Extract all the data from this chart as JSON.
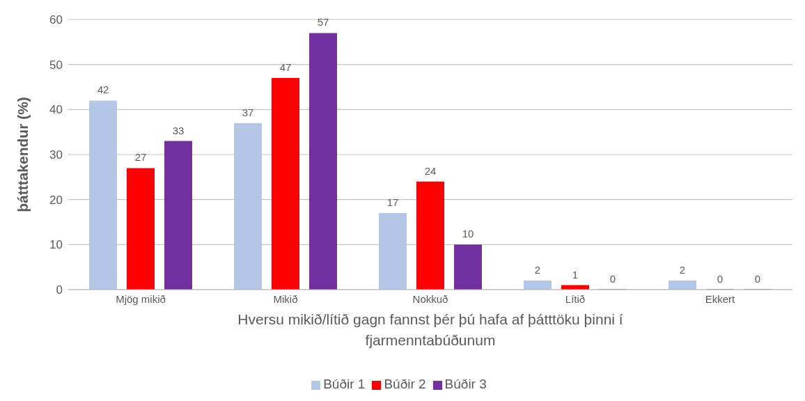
{
  "chart_data": {
    "type": "bar",
    "xlabel": "Hversu mikið/lítið gagn fannst þér þú hafa af þátttöku þinni í fjarmenntabúðunum",
    "ylabel": "þátttakendur (%)",
    "categories": [
      "Mjög mikið",
      "Mikið",
      "Nokkuð",
      "Lítið",
      "Ekkert"
    ],
    "series": [
      {
        "name": "Búðir 1",
        "color": "#b4c7e7",
        "values": [
          42,
          37,
          17,
          2,
          2
        ]
      },
      {
        "name": "Búðir 2",
        "color": "#ff0000",
        "values": [
          27,
          47,
          24,
          1,
          0
        ]
      },
      {
        "name": "Búðir 3",
        "color": "#7030a0",
        "values": [
          33,
          57,
          10,
          0,
          0
        ]
      }
    ],
    "ylim": [
      0,
      60
    ],
    "yticks": [
      0,
      10,
      20,
      30,
      40,
      50,
      60
    ],
    "grid": "y",
    "legend": "bottom",
    "data_labels": true
  }
}
